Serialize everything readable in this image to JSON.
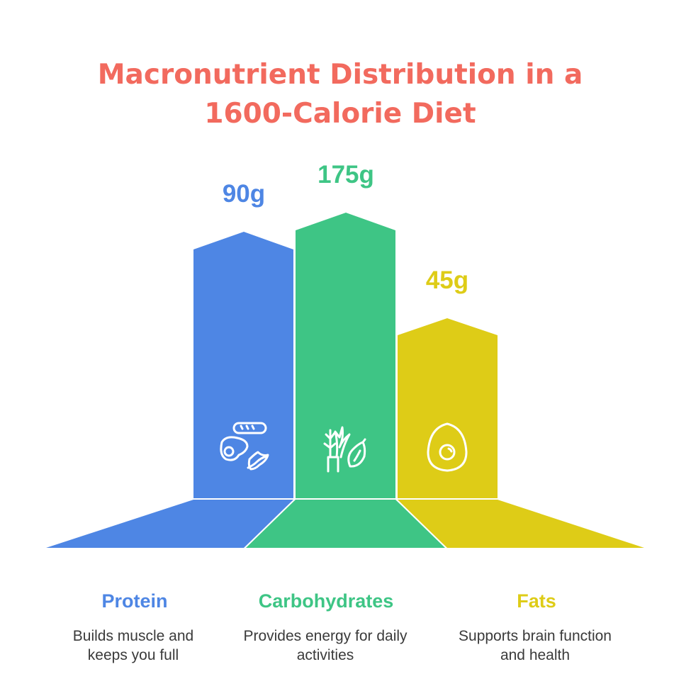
{
  "title": {
    "line1": "Macronutrient Distribution in a",
    "line2": "1600-Calorie Diet"
  },
  "colors": {
    "title": "#F26A5E",
    "protein": "#4E86E4",
    "carbs": "#3EC585",
    "fats": "#DECC17"
  },
  "items": [
    {
      "name": "Protein",
      "value": "90g",
      "grams": 90,
      "desc1": "Builds muscle and",
      "desc2": "keeps you full",
      "icon": "egg-bread-bacon-icon"
    },
    {
      "name": "Carbohydrates",
      "value": "175g",
      "grams": 175,
      "desc1": "Provides energy for daily",
      "desc2": "activities",
      "icon": "plants-lemon-icon"
    },
    {
      "name": "Fats",
      "value": "45g",
      "grams": 45,
      "desc1": "Supports brain function",
      "desc2": "and health",
      "icon": "avocado-icon"
    }
  ]
}
